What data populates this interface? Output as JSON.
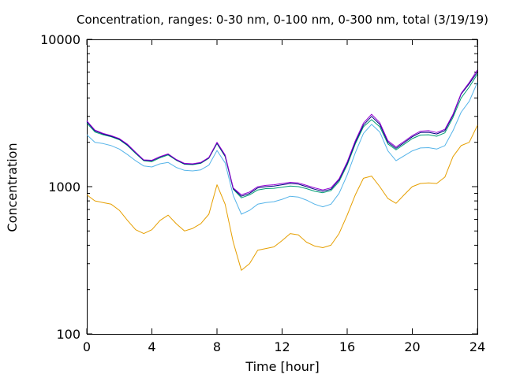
{
  "chart_data": {
    "type": "line",
    "title": "Concentration, ranges: 0-30 nm, 0-100 nm, 0-300 nm, total (3/19/19)",
    "xlabel": "Time [hour]",
    "ylabel": "Concentration",
    "xlim": [
      0,
      24
    ],
    "ylim": [
      100,
      10000
    ],
    "yscale": "log",
    "grid": false,
    "legend": "none",
    "x_ticks": [
      "0",
      "4",
      "8",
      "12",
      "16",
      "20",
      "24"
    ],
    "y_ticks": [
      "100",
      "1000",
      "10000"
    ],
    "x": [
      0,
      0.5,
      1,
      1.5,
      2,
      2.5,
      3,
      3.5,
      4,
      4.5,
      5,
      5.5,
      6,
      6.5,
      7,
      7.5,
      8,
      8.5,
      9,
      9.5,
      10,
      10.5,
      11,
      11.5,
      12,
      12.5,
      13,
      13.5,
      14,
      14.5,
      15,
      15.5,
      16,
      16.5,
      17,
      17.5,
      18,
      18.5,
      19,
      19.5,
      20,
      20.5,
      21,
      21.5,
      22,
      22.5,
      23,
      23.5,
      24
    ],
    "series": [
      {
        "color": "#e69f00",
        "values": [
          880,
          800,
          780,
          760,
          690,
          590,
          510,
          480,
          510,
          590,
          640,
          560,
          500,
          520,
          560,
          650,
          1030,
          760,
          420,
          270,
          300,
          370,
          380,
          390,
          430,
          480,
          470,
          420,
          395,
          385,
          400,
          480,
          640,
          880,
          1140,
          1180,
          1000,
          830,
          770,
          880,
          1000,
          1050,
          1060,
          1050,
          1160,
          1600,
          1900,
          2000,
          2600
        ]
      },
      {
        "color": "#56b4e9",
        "values": [
          2250,
          2000,
          1960,
          1900,
          1800,
          1650,
          1500,
          1380,
          1360,
          1430,
          1460,
          1350,
          1290,
          1280,
          1300,
          1400,
          1760,
          1450,
          870,
          650,
          690,
          760,
          780,
          790,
          820,
          860,
          850,
          810,
          760,
          730,
          760,
          900,
          1200,
          1700,
          2300,
          2650,
          2350,
          1750,
          1500,
          1620,
          1750,
          1830,
          1840,
          1800,
          1900,
          2400,
          3200,
          3800,
          5100
        ]
      },
      {
        "color": "#009e73",
        "values": [
          2700,
          2350,
          2250,
          2180,
          2080,
          1900,
          1680,
          1500,
          1480,
          1570,
          1640,
          1510,
          1420,
          1410,
          1440,
          1560,
          1960,
          1600,
          960,
          840,
          880,
          950,
          970,
          975,
          990,
          1010,
          1000,
          970,
          930,
          910,
          940,
          1080,
          1400,
          1950,
          2550,
          2850,
          2550,
          1950,
          1780,
          1940,
          2120,
          2240,
          2250,
          2200,
          2320,
          2950,
          4000,
          4750,
          5800
        ]
      },
      {
        "color": "#000080",
        "values": [
          2760,
          2390,
          2280,
          2200,
          2100,
          1920,
          1700,
          1510,
          1500,
          1590,
          1660,
          1520,
          1430,
          1420,
          1450,
          1570,
          1980,
          1620,
          970,
          860,
          900,
          980,
          1000,
          1010,
          1030,
          1050,
          1040,
          1000,
          960,
          930,
          960,
          1110,
          1440,
          2000,
          2620,
          3000,
          2650,
          2000,
          1820,
          1990,
          2180,
          2330,
          2340,
          2280,
          2400,
          3050,
          4250,
          5000,
          6000
        ]
      },
      {
        "color": "#9400d3",
        "values": [
          2800,
          2420,
          2300,
          2220,
          2120,
          1940,
          1710,
          1520,
          1510,
          1600,
          1670,
          1530,
          1440,
          1430,
          1460,
          1580,
          2000,
          1640,
          980,
          880,
          920,
          1000,
          1020,
          1030,
          1050,
          1070,
          1060,
          1020,
          980,
          950,
          980,
          1130,
          1470,
          2050,
          2700,
          3100,
          2720,
          2050,
          1860,
          2030,
          2220,
          2380,
          2400,
          2330,
          2450,
          3100,
          4300,
          5100,
          6200
        ]
      }
    ]
  }
}
